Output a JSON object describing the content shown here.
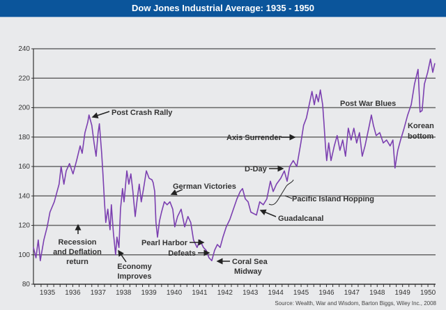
{
  "chart_data": {
    "type": "line",
    "title": "Dow Jones Industrial Average: 1935 - 1950",
    "xlabel": "",
    "ylabel": "",
    "ylim": [
      80,
      240
    ],
    "xlim": [
      1934.95,
      1950.8
    ],
    "grid": true,
    "yticks": [
      "80",
      "100",
      "120",
      "140",
      "160",
      "180",
      "200",
      "220",
      "240"
    ],
    "xticks": [
      "1935",
      "1936",
      "1937",
      "1938",
      "1939",
      "1940",
      "1941",
      "1942",
      "1943",
      "1944",
      "1945",
      "1946",
      "1947",
      "1948",
      "1949",
      "1950"
    ],
    "line_color": "#7b3fb0",
    "x": [
      1934.95,
      1935.05,
      1935.14,
      1935.22,
      1935.36,
      1935.49,
      1935.6,
      1935.77,
      1935.88,
      1935.96,
      1936.04,
      1936.15,
      1936.24,
      1936.37,
      1936.51,
      1936.65,
      1936.79,
      1936.87,
      1936.98,
      1937.09,
      1937.14,
      1937.25,
      1937.34,
      1937.42,
      1937.5,
      1937.55,
      1937.64,
      1937.69,
      1937.75,
      1937.8,
      1937.88,
      1937.97,
      1938.02,
      1938.1,
      1938.19,
      1938.24,
      1938.32,
      1938.38,
      1938.46,
      1938.52,
      1938.63,
      1938.71,
      1938.79,
      1938.87,
      1938.96,
      1939.04,
      1939.12,
      1939.2,
      1939.29,
      1939.4,
      1939.51,
      1939.62,
      1939.67,
      1939.73,
      1939.78,
      1939.84,
      1939.92,
      1940.0,
      1940.11,
      1940.22,
      1940.33,
      1940.44,
      1940.52,
      1940.63,
      1940.77,
      1940.91,
      1941.04,
      1941.15,
      1941.26,
      1941.4,
      1941.51,
      1941.65,
      1941.76,
      1941.87,
      1941.98,
      1942.09,
      1942.2,
      1942.31,
      1942.42,
      1942.55,
      1942.69,
      1942.83,
      1942.97,
      1943.1,
      1943.19,
      1943.3,
      1943.41,
      1943.52,
      1943.74,
      1943.87,
      1944.01,
      1944.15,
      1944.29,
      1944.4,
      1944.53,
      1944.7,
      1944.84,
      1944.95,
      1945.05,
      1945.19,
      1945.33,
      1945.49,
      1945.6,
      1945.71,
      1945.82,
      1945.93,
      1946.02,
      1946.1,
      1946.18,
      1946.26,
      1946.35,
      1946.4,
      1946.46,
      1946.51,
      1946.59,
      1946.68,
      1946.81,
      1946.92,
      1947.03,
      1947.14,
      1947.25,
      1947.36,
      1947.47,
      1947.58,
      1947.69,
      1947.8,
      1947.91,
      1948.02,
      1948.19,
      1948.27,
      1948.35,
      1948.46,
      1948.6,
      1948.74,
      1948.87,
      1949.01,
      1949.12,
      1949.2,
      1949.31,
      1949.42,
      1949.56,
      1949.7,
      1949.84,
      1949.97,
      1950.11,
      1950.19,
      1950.27,
      1950.36,
      1950.49,
      1950.6,
      1950.69,
      1950.77
    ],
    "y": [
      105,
      98,
      110,
      96,
      110,
      119,
      129,
      136,
      143,
      148,
      160,
      148,
      157,
      162,
      155,
      164,
      174,
      169,
      183,
      190,
      195,
      188,
      176,
      167,
      183,
      189,
      169,
      155,
      136,
      122,
      131,
      117,
      134,
      115,
      100,
      112,
      105,
      131,
      145,
      136,
      157,
      148,
      155,
      143,
      126,
      138,
      148,
      136,
      145,
      157,
      152,
      151,
      149,
      143,
      122,
      112,
      123,
      129,
      136,
      134,
      136,
      131,
      119,
      126,
      131,
      119,
      126,
      122,
      110,
      105,
      110,
      105,
      103,
      98,
      96,
      103,
      107,
      105,
      112,
      119,
      124,
      131,
      138,
      143,
      145,
      138,
      136,
      129,
      127,
      136,
      134,
      138,
      150,
      143,
      148,
      152,
      157,
      150,
      160,
      164,
      160,
      176,
      188,
      193,
      202,
      211,
      202,
      209,
      204,
      212,
      202,
      190,
      174,
      164,
      176,
      164,
      174,
      181,
      171,
      178,
      167,
      186,
      178,
      186,
      176,
      183,
      167,
      174,
      188,
      195,
      188,
      181,
      183,
      176,
      178,
      174,
      178,
      159,
      171,
      178,
      186,
      195,
      202,
      216,
      226,
      197,
      198,
      216,
      224,
      233,
      224,
      230
    ],
    "annotations": [
      {
        "lines": [
          "Post Crash Rally"
        ]
      },
      {
        "lines": [
          "Recession",
          "and Deflation",
          "return"
        ]
      },
      {
        "lines": [
          "Economy",
          "Improves"
        ]
      },
      {
        "lines": [
          "German Victories"
        ]
      },
      {
        "lines": [
          "Pearl Harbor"
        ]
      },
      {
        "lines": [
          "Defeats"
        ]
      },
      {
        "lines": [
          "Coral Sea",
          "Midway"
        ]
      },
      {
        "lines": [
          "Guadalcanal"
        ]
      },
      {
        "lines": [
          "Pacific Island Hopping"
        ]
      },
      {
        "lines": [
          "D-Day"
        ]
      },
      {
        "lines": [
          "Axis Surrender"
        ]
      },
      {
        "lines": [
          "Post War Blues"
        ]
      },
      {
        "lines": [
          "Korean",
          "bottom"
        ]
      }
    ],
    "source": "Source: Wealth, War and Wisdom, Barton Biggs, Wiley Inc., 2008"
  }
}
